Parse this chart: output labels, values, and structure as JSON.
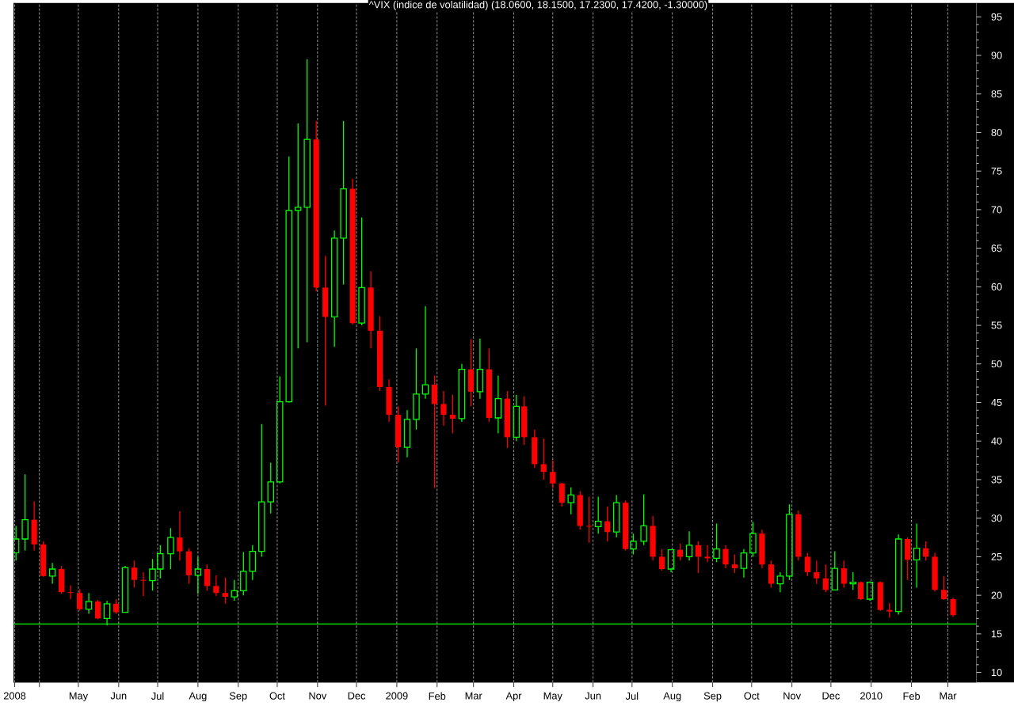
{
  "chart_data": {
    "type": "candlestick",
    "title": "^VIX (indice de volatilidad) (18.0600, 18.1500, 17.2300, 17.4200, -1.30000)",
    "x": [
      "2008-03-14",
      "2008-03-21",
      "2008-03-28",
      "2008-04-04",
      "2008-04-11",
      "2008-04-18",
      "2008-04-25",
      "2008-05-02",
      "2008-05-09",
      "2008-05-16",
      "2008-05-23",
      "2008-05-30",
      "2008-06-06",
      "2008-06-13",
      "2008-06-20",
      "2008-06-27",
      "2008-07-03",
      "2008-07-11",
      "2008-07-18",
      "2008-07-25",
      "2008-08-01",
      "2008-08-08",
      "2008-08-15",
      "2008-08-22",
      "2008-08-29",
      "2008-09-05",
      "2008-09-12",
      "2008-09-19",
      "2008-09-26",
      "2008-10-03",
      "2008-10-10",
      "2008-10-17",
      "2008-10-24",
      "2008-10-31",
      "2008-11-07",
      "2008-11-14",
      "2008-11-21",
      "2008-11-28",
      "2008-12-05",
      "2008-12-12",
      "2008-12-19",
      "2008-12-26",
      "2009-01-02",
      "2009-01-09",
      "2009-01-16",
      "2009-01-23",
      "2009-01-30",
      "2009-02-06",
      "2009-02-13",
      "2009-02-20",
      "2009-02-27",
      "2009-03-06",
      "2009-03-13",
      "2009-03-20",
      "2009-03-27",
      "2009-04-03",
      "2009-04-09",
      "2009-04-17",
      "2009-04-24",
      "2009-05-01",
      "2009-05-08",
      "2009-05-15",
      "2009-05-22",
      "2009-05-29",
      "2009-06-05",
      "2009-06-12",
      "2009-06-19",
      "2009-06-26",
      "2009-07-02",
      "2009-07-10",
      "2009-07-17",
      "2009-07-24",
      "2009-07-31",
      "2009-08-07",
      "2009-08-14",
      "2009-08-21",
      "2009-08-28",
      "2009-09-04",
      "2009-09-11",
      "2009-09-18",
      "2009-09-25",
      "2009-10-02",
      "2009-10-09",
      "2009-10-16",
      "2009-10-23",
      "2009-10-30",
      "2009-11-06",
      "2009-11-13",
      "2009-11-20",
      "2009-11-27",
      "2009-12-04",
      "2009-12-11",
      "2009-12-18",
      "2009-12-24",
      "2009-12-31",
      "2010-01-08",
      "2010-01-15",
      "2010-01-22",
      "2010-01-29",
      "2010-02-05",
      "2010-02-12",
      "2010-02-19",
      "2010-02-26",
      "2010-03-05"
    ],
    "ohlc": [
      [
        25.5,
        29.0,
        24.5,
        27.3
      ],
      [
        27.3,
        35.7,
        25.8,
        29.8
      ],
      [
        29.8,
        32.2,
        25.8,
        26.6
      ],
      [
        26.6,
        27.0,
        22.4,
        22.5
      ],
      [
        22.5,
        24.2,
        21.5,
        23.4
      ],
      [
        23.4,
        23.8,
        20.2,
        20.4
      ],
      [
        20.4,
        21.3,
        19.5,
        20.3
      ],
      [
        20.3,
        20.8,
        18.0,
        18.2
      ],
      [
        18.2,
        20.3,
        17.6,
        19.2
      ],
      [
        19.2,
        19.4,
        16.9,
        17.0
      ],
      [
        17.0,
        19.3,
        16.1,
        18.9
      ],
      [
        18.9,
        19.5,
        17.6,
        17.8
      ],
      [
        17.8,
        23.8,
        17.8,
        23.6
      ],
      [
        23.6,
        24.5,
        21.0,
        22.0
      ],
      [
        22.0,
        23.0,
        19.9,
        21.9
      ],
      [
        21.9,
        24.7,
        20.6,
        23.4
      ],
      [
        23.4,
        26.5,
        22.2,
        25.4
      ],
      [
        25.4,
        28.7,
        23.4,
        27.5
      ],
      [
        27.5,
        30.9,
        24.5,
        25.7
      ],
      [
        25.7,
        26.1,
        21.5,
        22.6
      ],
      [
        22.6,
        25.0,
        20.2,
        23.4
      ],
      [
        23.4,
        24.0,
        20.6,
        21.2
      ],
      [
        21.2,
        22.6,
        19.9,
        20.3
      ],
      [
        20.3,
        22.3,
        18.9,
        19.8
      ],
      [
        19.8,
        22.0,
        19.3,
        20.6
      ],
      [
        20.6,
        25.6,
        20.0,
        23.1
      ],
      [
        23.1,
        26.5,
        22.0,
        25.7
      ],
      [
        25.7,
        42.2,
        25.0,
        32.1
      ],
      [
        32.1,
        37.2,
        30.6,
        34.7
      ],
      [
        34.7,
        48.4,
        34.5,
        45.1
      ],
      [
        45.1,
        76.9,
        45.0,
        69.9
      ],
      [
        69.9,
        81.2,
        52.0,
        70.3
      ],
      [
        70.3,
        89.5,
        52.8,
        79.1
      ],
      [
        79.1,
        81.5,
        59.4,
        59.9
      ],
      [
        59.9,
        64.0,
        44.6,
        56.1
      ],
      [
        56.1,
        67.3,
        52.2,
        66.3
      ],
      [
        66.3,
        81.5,
        60.3,
        72.7
      ],
      [
        72.7,
        74.0,
        55.1,
        55.3
      ],
      [
        55.3,
        69.0,
        55.0,
        59.9
      ],
      [
        59.9,
        62.0,
        52.0,
        54.3
      ],
      [
        54.3,
        56.2,
        46.5,
        47.0
      ],
      [
        47.0,
        48.0,
        42.5,
        43.4
      ],
      [
        43.4,
        44.5,
        37.2,
        39.2
      ],
      [
        39.2,
        44.0,
        37.9,
        42.8
      ],
      [
        42.8,
        52.0,
        41.5,
        46.1
      ],
      [
        46.1,
        57.5,
        45.5,
        47.3
      ],
      [
        47.3,
        48.5,
        33.9,
        44.8
      ],
      [
        44.8,
        46.5,
        42.0,
        43.4
      ],
      [
        43.4,
        46.0,
        41.0,
        42.9
      ],
      [
        42.9,
        50.0,
        42.5,
        49.3
      ],
      [
        49.3,
        53.2,
        44.5,
        46.4
      ],
      [
        46.4,
        53.3,
        45.5,
        49.3
      ],
      [
        49.3,
        52.0,
        42.5,
        43.0
      ],
      [
        43.0,
        48.5,
        41.0,
        45.5
      ],
      [
        45.5,
        46.5,
        39.1,
        40.5
      ],
      [
        40.5,
        46.0,
        40.0,
        44.5
      ],
      [
        44.5,
        45.8,
        39.5,
        40.5
      ],
      [
        40.5,
        41.5,
        36.5,
        37.0
      ],
      [
        37.0,
        40.3,
        35.0,
        36.0
      ],
      [
        36.0,
        37.5,
        33.9,
        34.5
      ],
      [
        34.5,
        34.6,
        31.5,
        32.0
      ],
      [
        32.0,
        34.0,
        30.5,
        33.0
      ],
      [
        33.0,
        33.5,
        28.5,
        29.0
      ],
      [
        29.0,
        32.8,
        26.8,
        28.9
      ],
      [
        28.9,
        32.8,
        28.0,
        29.6
      ],
      [
        29.6,
        31.5,
        27.0,
        28.2
      ],
      [
        28.2,
        33.0,
        27.5,
        32.0
      ],
      [
        32.0,
        32.3,
        25.8,
        26.0
      ],
      [
        26.0,
        28.0,
        25.3,
        27.0
      ],
      [
        27.0,
        33.1,
        26.5,
        29.0
      ],
      [
        29.0,
        30.3,
        24.5,
        25.0
      ],
      [
        25.0,
        26.0,
        23.2,
        23.4
      ],
      [
        23.4,
        26.0,
        23.0,
        25.9
      ],
      [
        25.9,
        26.7,
        24.5,
        25.0
      ],
      [
        25.0,
        28.3,
        24.5,
        26.5
      ],
      [
        26.5,
        27.0,
        22.9,
        25.0
      ],
      [
        25.0,
        26.5,
        24.3,
        24.8
      ],
      [
        24.8,
        29.3,
        24.3,
        26.0
      ],
      [
        26.0,
        26.5,
        23.5,
        24.0
      ],
      [
        24.0,
        25.3,
        22.9,
        23.5
      ],
      [
        23.5,
        26.0,
        22.3,
        25.5
      ],
      [
        25.5,
        29.5,
        25.0,
        28.0
      ],
      [
        28.0,
        28.5,
        23.5,
        24.0
      ],
      [
        24.0,
        24.5,
        21.0,
        21.5
      ],
      [
        21.5,
        23.0,
        20.4,
        22.5
      ],
      [
        22.5,
        31.8,
        22.0,
        30.5
      ],
      [
        30.5,
        31.0,
        24.5,
        25.0
      ],
      [
        25.0,
        25.5,
        22.5,
        23.0
      ],
      [
        23.0,
        24.5,
        21.5,
        22.2
      ],
      [
        22.2,
        24.0,
        20.4,
        20.7
      ],
      [
        20.7,
        25.7,
        20.7,
        23.5
      ],
      [
        23.5,
        24.5,
        21.0,
        21.5
      ],
      [
        21.5,
        23.0,
        20.7,
        21.7
      ],
      [
        21.7,
        21.8,
        19.4,
        19.5
      ],
      [
        19.5,
        21.8,
        19.3,
        21.7
      ],
      [
        21.7,
        21.8,
        18.0,
        18.1
      ],
      [
        18.1,
        19.0,
        17.1,
        17.9
      ],
      [
        17.9,
        27.9,
        17.5,
        27.3
      ],
      [
        27.3,
        27.5,
        22.0,
        24.6
      ],
      [
        24.6,
        29.3,
        21.0,
        26.1
      ],
      [
        26.1,
        27.0,
        24.5,
        25.0
      ],
      [
        25.0,
        25.5,
        20.5,
        20.7
      ],
      [
        20.7,
        22.5,
        19.4,
        19.5
      ],
      [
        19.5,
        19.7,
        17.23,
        17.42
      ]
    ],
    "colors": [
      "#00ff00",
      "#00ff00",
      "#ff0000",
      "#ff0000",
      "#00ff00",
      "#ff0000",
      "#ff0000",
      "#ff0000",
      "#00ff00",
      "#ff0000",
      "#00ff00",
      "#ff0000",
      "#00ff00",
      "#ff0000",
      "#ff0000",
      "#00ff00",
      "#00ff00",
      "#00ff00",
      "#ff0000",
      "#ff0000",
      "#00ff00",
      "#ff0000",
      "#ff0000",
      "#ff0000",
      "#00ff00",
      "#00ff00",
      "#00ff00",
      "#00ff00",
      "#00ff00",
      "#00ff00",
      "#00ff00",
      "#00ff00",
      "#00ff00",
      "#ff0000",
      "#ff0000",
      "#00ff00",
      "#00ff00",
      "#ff0000",
      "#00ff00",
      "#ff0000",
      "#ff0000",
      "#ff0000",
      "#ff0000",
      "#00ff00",
      "#00ff00",
      "#00ff00",
      "#ff0000",
      "#ff0000",
      "#ff0000",
      "#00ff00",
      "#ff0000",
      "#00ff00",
      "#ff0000",
      "#00ff00",
      "#ff0000",
      "#00ff00",
      "#ff0000",
      "#ff0000",
      "#ff0000",
      "#ff0000",
      "#ff0000",
      "#00ff00",
      "#ff0000",
      "#ff0000",
      "#00ff00",
      "#ff0000",
      "#00ff00",
      "#ff0000",
      "#00ff00",
      "#00ff00",
      "#ff0000",
      "#ff0000",
      "#00ff00",
      "#ff0000",
      "#00ff00",
      "#ff0000",
      "#ff0000",
      "#00ff00",
      "#ff0000",
      "#ff0000",
      "#00ff00",
      "#00ff00",
      "#ff0000",
      "#ff0000",
      "#00ff00",
      "#00ff00",
      "#ff0000",
      "#ff0000",
      "#ff0000",
      "#ff0000",
      "#00ff00",
      "#ff0000",
      "#00ff00",
      "#ff0000",
      "#00ff00",
      "#ff0000",
      "#ff0000",
      "#00ff00",
      "#ff0000",
      "#00ff00",
      "#ff0000",
      "#ff0000",
      "#ff0000",
      "#ff0000"
    ],
    "xlim": [
      "2008-03-12",
      "2010-03-23"
    ],
    "xticks": [
      {
        "value": "2008-03-13",
        "label": "2008"
      },
      {
        "value": "2008-04-01",
        "label": null
      },
      {
        "value": "2008-05-01",
        "label": "May"
      },
      {
        "value": "2008-06-01",
        "label": "Jun"
      },
      {
        "value": "2008-07-01",
        "label": "Jul"
      },
      {
        "value": "2008-08-01",
        "label": "Aug"
      },
      {
        "value": "2008-09-01",
        "label": "Sep"
      },
      {
        "value": "2008-10-01",
        "label": "Oct"
      },
      {
        "value": "2008-11-01",
        "label": "Nov"
      },
      {
        "value": "2008-12-01",
        "label": "Dec"
      },
      {
        "value": "2009-01-01",
        "label": "2009"
      },
      {
        "value": "2009-02-01",
        "label": "Feb"
      },
      {
        "value": "2009-03-01",
        "label": "Mar"
      },
      {
        "value": "2009-04-01",
        "label": "Apr"
      },
      {
        "value": "2009-05-01",
        "label": "May"
      },
      {
        "value": "2009-06-01",
        "label": "Jun"
      },
      {
        "value": "2009-07-01",
        "label": "Jul"
      },
      {
        "value": "2009-08-01",
        "label": "Aug"
      },
      {
        "value": "2009-09-01",
        "label": "Sep"
      },
      {
        "value": "2009-10-01",
        "label": "Oct"
      },
      {
        "value": "2009-11-01",
        "label": "Nov"
      },
      {
        "value": "2009-12-01",
        "label": "Dec"
      },
      {
        "value": "2010-01-01",
        "label": "2010"
      },
      {
        "value": "2010-02-01",
        "label": "Feb"
      },
      {
        "value": "2010-03-01",
        "label": "Mar"
      }
    ],
    "ylim": [
      8.7,
      96.8
    ],
    "yticks": [
      10,
      15,
      20,
      25,
      30,
      35,
      40,
      45,
      50,
      55,
      60,
      65,
      70,
      75,
      80,
      85,
      90,
      95
    ],
    "grid": "x",
    "ref_lines": [
      {
        "axis": "y",
        "value": 16.3,
        "color": "#00ff00"
      }
    ]
  }
}
